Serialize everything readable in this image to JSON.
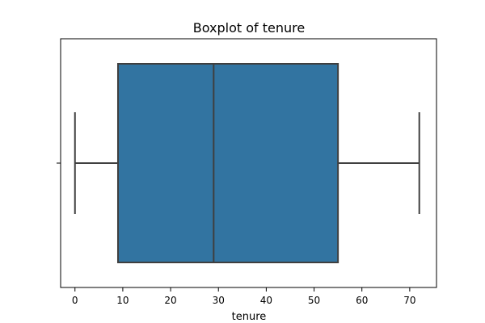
{
  "chart_data": {
    "type": "boxplot",
    "title": "Boxplot of tenure",
    "xlabel": "tenure",
    "ylabel": "",
    "orientation": "horizontal",
    "xlim": [
      -3,
      75.6
    ],
    "xticks": [
      0,
      10,
      20,
      30,
      40,
      50,
      60,
      70
    ],
    "grid": false,
    "series": [
      {
        "min": 0,
        "q1": 9,
        "median": 29,
        "q3": 55,
        "max": 72
      }
    ],
    "colors": {
      "box_fill": "#3274a1",
      "line": "#3f3f3f"
    }
  }
}
